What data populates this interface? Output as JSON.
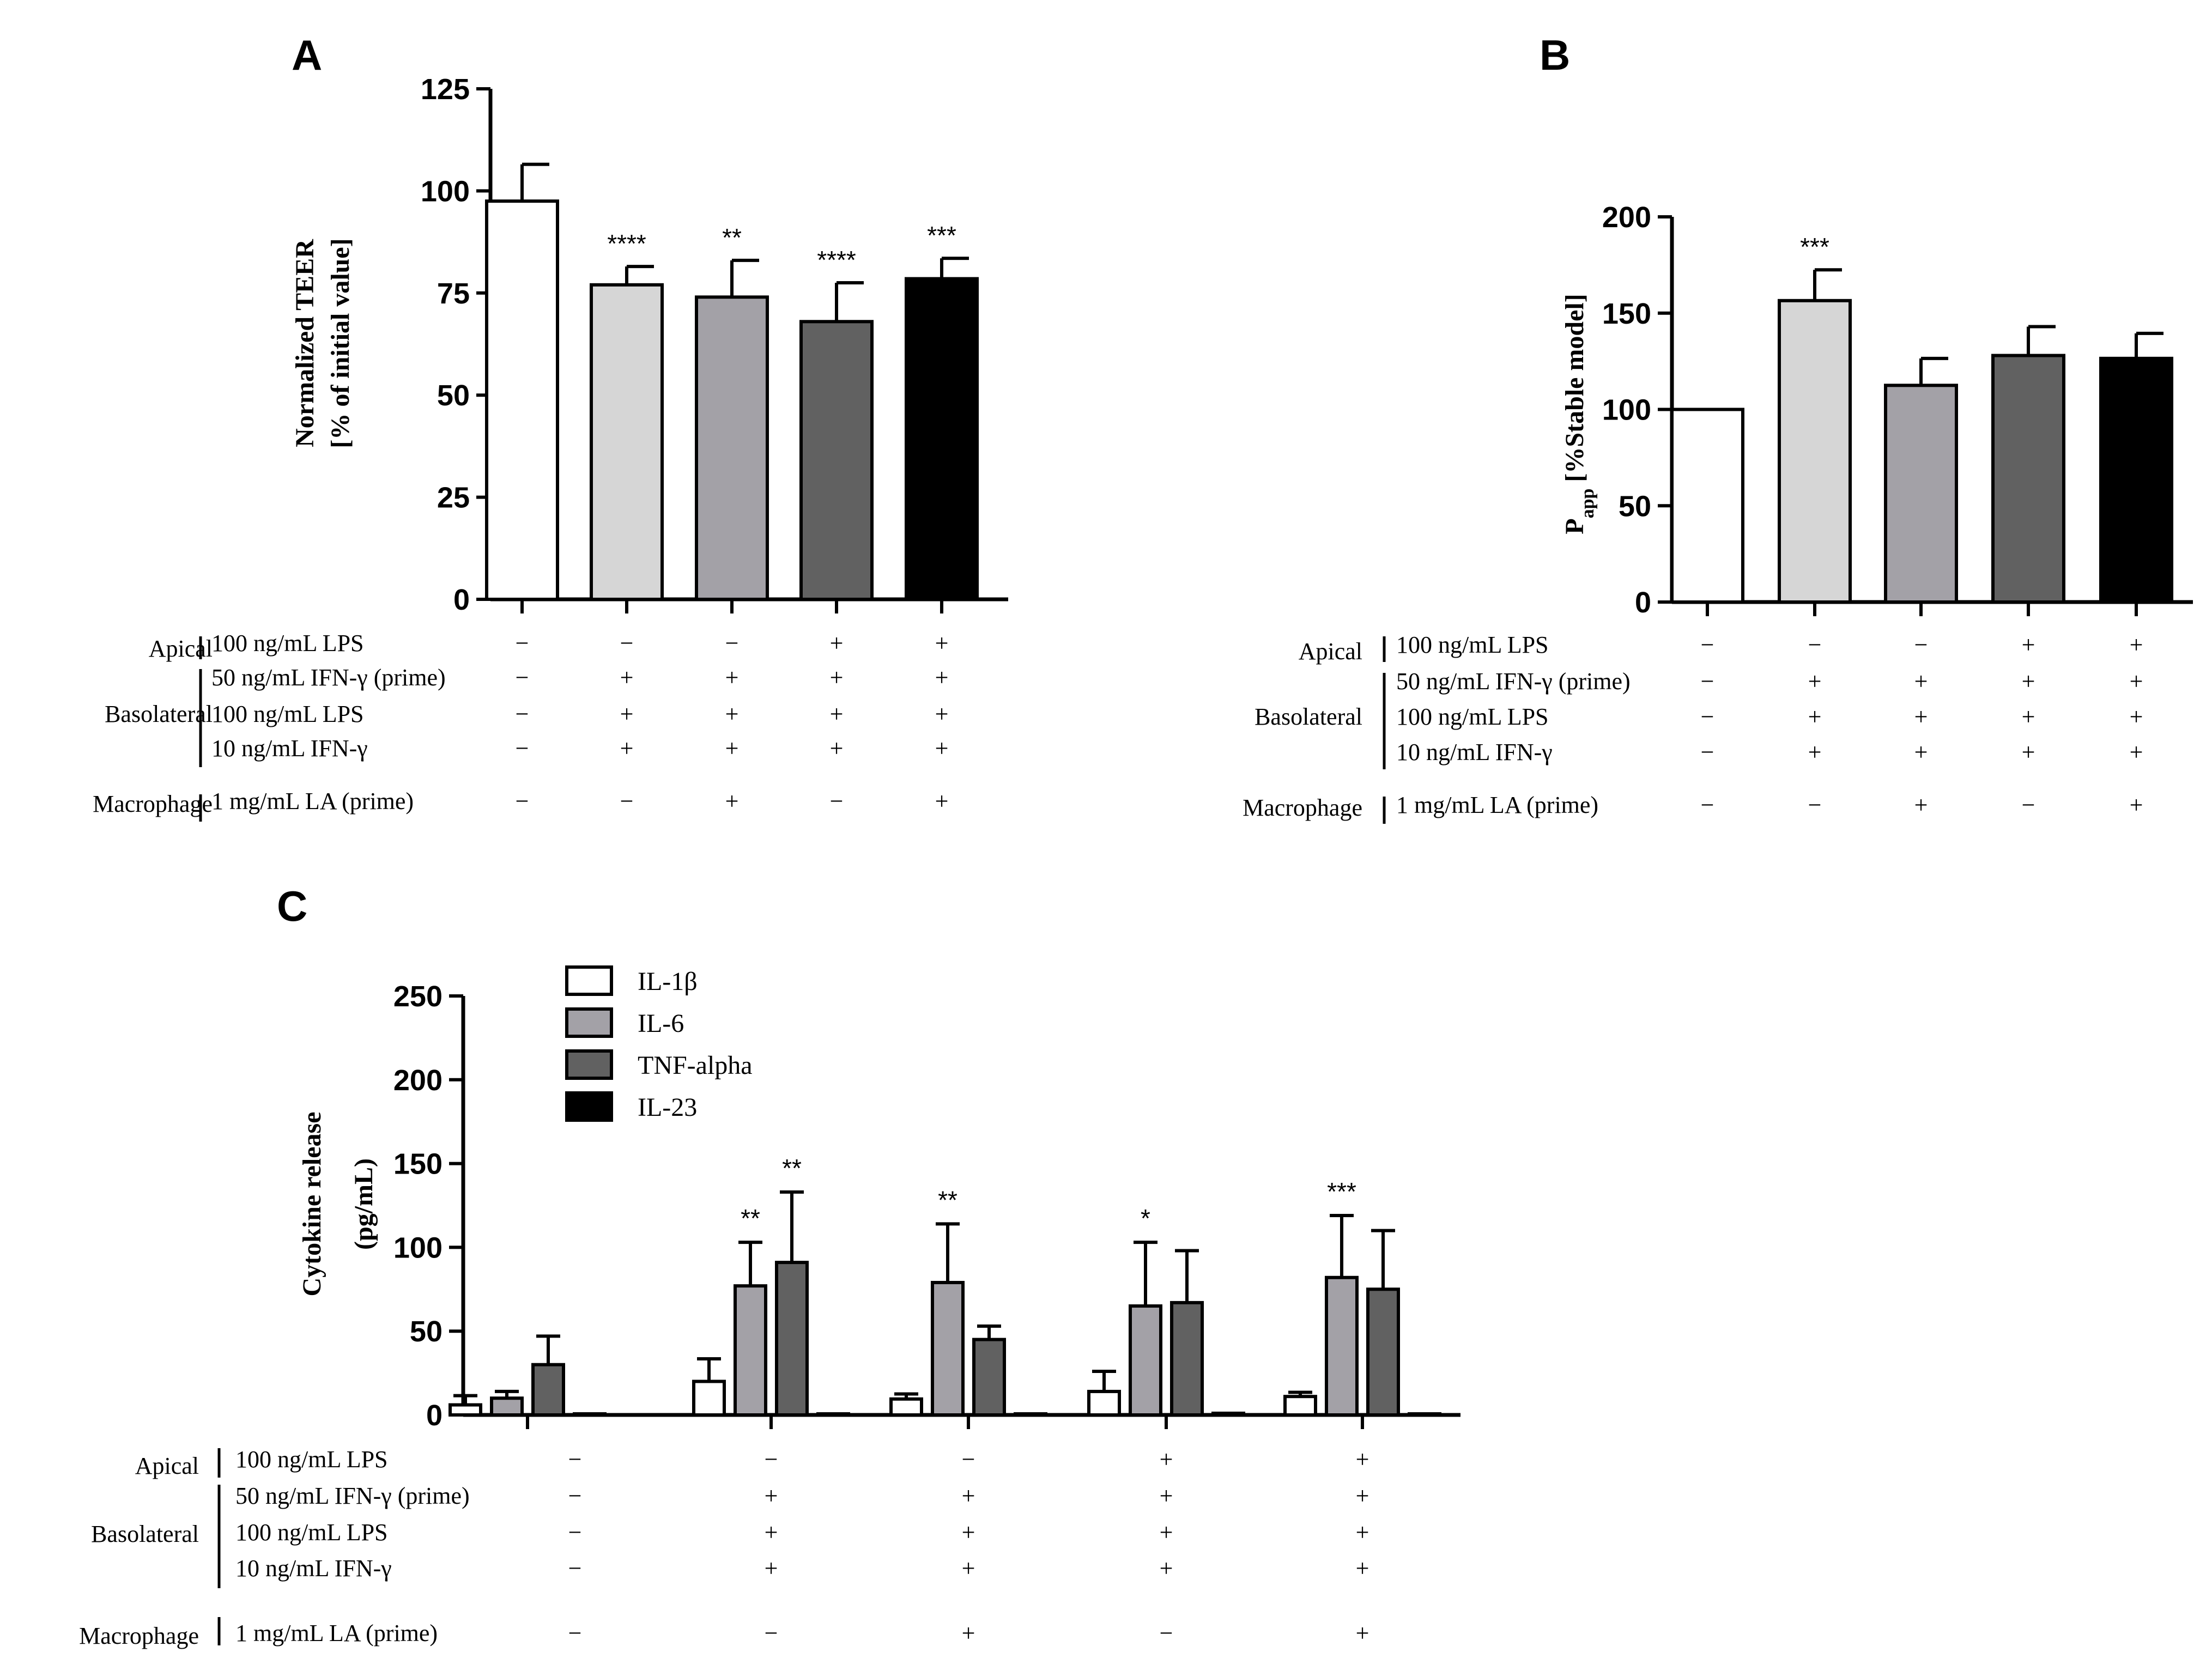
{
  "colors": {
    "white": "#ffffff",
    "light_gray": "#d6d6d6",
    "mid_gray": "#a3a1a7",
    "dark_gray": "#616161",
    "black": "#000000"
  },
  "condition_rows": {
    "groups": [
      {
        "label": "Apical",
        "rows": [
          0
        ]
      },
      {
        "label": "Basolateral",
        "rows": [
          1,
          2,
          3
        ]
      },
      {
        "label": "Macrophage",
        "rows": [
          4
        ]
      }
    ],
    "row_labels": [
      "100 ng/mL LPS",
      "50 ng/mL IFN-γ (prime)",
      "100 ng/mL LPS",
      "10 ng/mL IFN-γ",
      "1 mg/mL LA (prime)"
    ],
    "signs": [
      [
        "−",
        "−",
        "−",
        "+",
        "+"
      ],
      [
        "−",
        "+",
        "+",
        "+",
        "+"
      ],
      [
        "−",
        "+",
        "+",
        "+",
        "+"
      ],
      [
        "−",
        "+",
        "+",
        "+",
        "+"
      ],
      [
        "−",
        "−",
        "+",
        "−",
        "+"
      ]
    ]
  },
  "chart_data": [
    {
      "panel": "A",
      "type": "bar",
      "ylabel_line1": "Normalized TEER",
      "ylabel_line2": "[% of initial value]",
      "ylim": [
        0,
        125
      ],
      "yticks": [
        "0",
        "25",
        "50",
        "75",
        "100",
        "125"
      ],
      "ytick_values": [
        0,
        25,
        50,
        75,
        100,
        125
      ],
      "values": [
        97.5,
        77,
        74,
        68,
        78.5
      ],
      "errors": [
        9,
        4.5,
        9,
        9.5,
        5
      ],
      "significance": [
        "",
        "****",
        "**",
        "****",
        "***"
      ],
      "bar_colors": [
        "#ffffff",
        "#d6d6d6",
        "#a3a1a7",
        "#616161",
        "#000000"
      ]
    },
    {
      "panel": "B",
      "type": "bar",
      "ylabel_main": "P",
      "ylabel_sub": "app",
      "ylabel_rest": " [%Stable model]",
      "ylim": [
        0,
        200
      ],
      "yticks": [
        "0",
        "50",
        "100",
        "150",
        "200"
      ],
      "ytick_values": [
        0,
        50,
        100,
        150,
        200
      ],
      "values": [
        100,
        156.5,
        112.5,
        128,
        126.5
      ],
      "errors": [
        0,
        16,
        14,
        15,
        13
      ],
      "significance": [
        "",
        "***",
        "",
        "",
        ""
      ],
      "bar_colors": [
        "#ffffff",
        "#d6d6d6",
        "#a3a1a7",
        "#616161",
        "#000000"
      ]
    },
    {
      "panel": "C",
      "type": "bar",
      "ylabel_line1": "Cytokine release",
      "ylabel_line2": "(pg/mL)",
      "ylim": [
        0,
        250
      ],
      "yticks": [
        "0",
        "50",
        "100",
        "150",
        "200",
        "250"
      ],
      "ytick_values": [
        0,
        50,
        100,
        150,
        200,
        250
      ],
      "legend": [
        "IL-1β",
        "IL-6",
        "TNF-alpha",
        "IL-23"
      ],
      "series_colors": [
        "#ffffff",
        "#a3a1a7",
        "#616161",
        "#000000"
      ],
      "series": [
        {
          "name": "IL-1β",
          "values": [
            6,
            20,
            9.5,
            14,
            11
          ],
          "errors": [
            5.5,
            13.5,
            3,
            12,
            2.5
          ],
          "significance": [
            "",
            "",
            "",
            "",
            ""
          ]
        },
        {
          "name": "IL-6",
          "values": [
            10,
            77,
            79,
            65,
            82
          ],
          "errors": [
            4,
            26,
            35,
            38,
            37
          ],
          "significance": [
            "",
            "**",
            "**",
            "*",
            "***"
          ]
        },
        {
          "name": "TNF-alpha",
          "values": [
            30,
            91,
            45,
            67,
            75
          ],
          "errors": [
            17,
            42,
            8,
            31,
            35
          ],
          "significance": [
            "",
            "**",
            "",
            "",
            ""
          ]
        },
        {
          "name": "IL-23",
          "values": [
            0,
            0,
            0,
            1,
            0
          ],
          "errors": [
            0,
            0,
            0,
            0,
            0
          ],
          "significance": [
            "",
            "",
            "",
            "",
            ""
          ]
        }
      ]
    }
  ]
}
